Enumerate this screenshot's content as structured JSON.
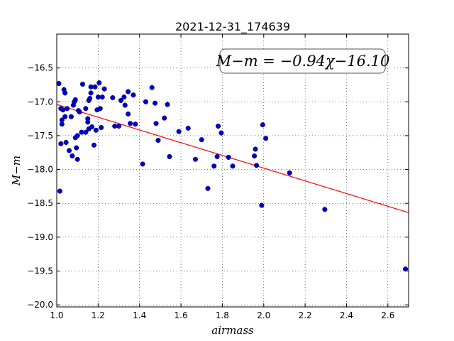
{
  "chart_data": {
    "type": "scatter",
    "title": "2021-12-31_174639",
    "xlabel": "airmass",
    "ylabel": "M−m",
    "xlim": [
      1.0,
      2.7
    ],
    "ylim": [
      -20.03,
      -16.0
    ],
    "xticks": [
      1.0,
      1.2,
      1.4,
      1.6,
      1.8,
      2.0,
      2.2,
      2.4,
      2.6
    ],
    "xtick_labels": [
      "1.0",
      "1.2",
      "1.4",
      "1.6",
      "1.8",
      "2.0",
      "2.2",
      "2.4",
      "2.6"
    ],
    "yticks": [
      -16.5,
      -17.0,
      -17.5,
      -18.0,
      -18.5,
      -19.0,
      -19.5,
      -20.0
    ],
    "ytick_labels": [
      "−16.5",
      "−17.0",
      "−17.5",
      "−18.0",
      "−18.5",
      "−19.0",
      "−19.5",
      "−20.0"
    ],
    "grid": true,
    "annotation": "M−m = −0.94χ−16.10",
    "fit": {
      "slope": -0.94,
      "intercept": -16.1,
      "color": "#ff0000"
    },
    "point_color": "#0000cc",
    "points": [
      [
        1.01,
        -16.73
      ],
      [
        1.015,
        -18.32
      ],
      [
        1.02,
        -17.1
      ],
      [
        1.025,
        -17.33
      ],
      [
        1.025,
        -17.27
      ],
      [
        1.02,
        -17.62
      ],
      [
        1.03,
        -17.12
      ],
      [
        1.035,
        -16.82
      ],
      [
        1.04,
        -16.87
      ],
      [
        1.04,
        -17.22
      ],
      [
        1.045,
        -17.6
      ],
      [
        1.05,
        -17.1
      ],
      [
        1.06,
        -17.72
      ],
      [
        1.07,
        -17.22
      ],
      [
        1.075,
        -17.8
      ],
      [
        1.08,
        -17.05
      ],
      [
        1.085,
        -17.0
      ],
      [
        1.09,
        -16.97
      ],
      [
        1.09,
        -17.53
      ],
      [
        1.095,
        -17.68
      ],
      [
        1.1,
        -17.5
      ],
      [
        1.1,
        -17.85
      ],
      [
        1.105,
        -17.13
      ],
      [
        1.11,
        -17.15
      ],
      [
        1.12,
        -17.45
      ],
      [
        1.125,
        -16.74
      ],
      [
        1.14,
        -17.1
      ],
      [
        1.14,
        -17.45
      ],
      [
        1.15,
        -17.25
      ],
      [
        1.15,
        -17.3
      ],
      [
        1.155,
        -17.4
      ],
      [
        1.155,
        -16.98
      ],
      [
        1.16,
        -16.95
      ],
      [
        1.165,
        -16.87
      ],
      [
        1.165,
        -16.78
      ],
      [
        1.17,
        -17.37
      ],
      [
        1.18,
        -17.64
      ],
      [
        1.185,
        -16.78
      ],
      [
        1.19,
        -17.42
      ],
      [
        1.195,
        -17.12
      ],
      [
        1.2,
        -16.93
      ],
      [
        1.205,
        -16.72
      ],
      [
        1.21,
        -17.1
      ],
      [
        1.215,
        -17.38
      ],
      [
        1.22,
        -16.93
      ],
      [
        1.23,
        -16.81
      ],
      [
        1.27,
        -16.94
      ],
      [
        1.28,
        -17.36
      ],
      [
        1.3,
        -17.36
      ],
      [
        1.31,
        -16.98
      ],
      [
        1.325,
        -16.93
      ],
      [
        1.33,
        -17.05
      ],
      [
        1.345,
        -17.18
      ],
      [
        1.345,
        -16.85
      ],
      [
        1.355,
        -17.32
      ],
      [
        1.37,
        -16.9
      ],
      [
        1.38,
        -17.33
      ],
      [
        1.415,
        -17.92
      ],
      [
        1.43,
        -17.0
      ],
      [
        1.46,
        -16.79
      ],
      [
        1.475,
        -17.02
      ],
      [
        1.48,
        -17.32
      ],
      [
        1.49,
        -17.57
      ],
      [
        1.52,
        -17.24
      ],
      [
        1.535,
        -17.04
      ],
      [
        1.545,
        -17.81
      ],
      [
        1.59,
        -17.44
      ],
      [
        1.635,
        -17.39
      ],
      [
        1.67,
        -17.85
      ],
      [
        1.7,
        -17.56
      ],
      [
        1.73,
        -18.28
      ],
      [
        1.76,
        -17.95
      ],
      [
        1.775,
        -17.81
      ],
      [
        1.78,
        -17.36
      ],
      [
        1.795,
        -17.46
      ],
      [
        1.83,
        -17.82
      ],
      [
        1.85,
        -17.95
      ],
      [
        1.955,
        -17.8
      ],
      [
        1.96,
        -17.7
      ],
      [
        1.965,
        -17.94
      ],
      [
        1.99,
        -18.53
      ],
      [
        1.995,
        -17.34
      ],
      [
        2.01,
        -17.54
      ],
      [
        2.125,
        -18.05
      ],
      [
        2.295,
        -18.59
      ],
      [
        2.685,
        -19.47
      ]
    ]
  }
}
